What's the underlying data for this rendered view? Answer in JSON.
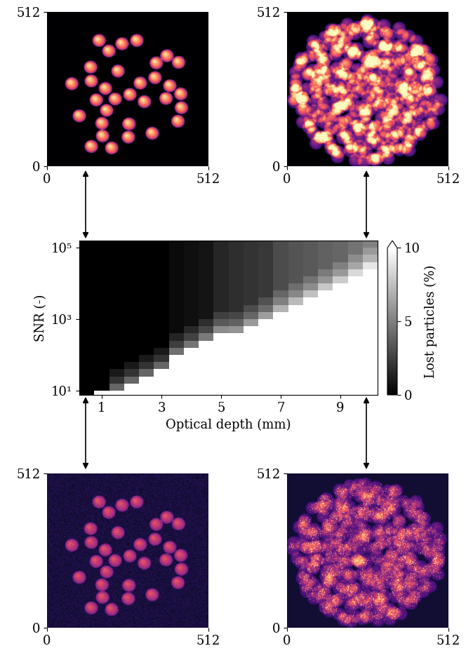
{
  "chart_data": [
    {
      "type": "image",
      "xlim": [
        0,
        512
      ],
      "ylim": [
        0,
        512
      ],
      "xticks": [
        0,
        512
      ],
      "yticks": [
        0,
        512
      ],
      "particle_radius": 22,
      "particles": [
        [
          165,
          418
        ],
        [
          196,
          383
        ],
        [
          238,
          407
        ],
        [
          285,
          418
        ],
        [
          381,
          367
        ],
        [
          347,
          343
        ],
        [
          418,
          345
        ],
        [
          138,
          329
        ],
        [
          225,
          316
        ],
        [
          78,
          274
        ],
        [
          140,
          283
        ],
        [
          185,
          258
        ],
        [
          296,
          276
        ],
        [
          343,
          294
        ],
        [
          390,
          267
        ],
        [
          263,
          238
        ],
        [
          156,
          220
        ],
        [
          216,
          223
        ],
        [
          309,
          214
        ],
        [
          378,
          225
        ],
        [
          425,
          240
        ],
        [
          189,
          185
        ],
        [
          427,
          194
        ],
        [
          102,
          167
        ],
        [
          174,
          142
        ],
        [
          260,
          140
        ],
        [
          416,
          149
        ],
        [
          176,
          100
        ],
        [
          334,
          109
        ],
        [
          258,
          96
        ],
        [
          140,
          65
        ],
        [
          205,
          60
        ]
      ]
    },
    {
      "type": "image",
      "xlim": [
        0,
        512
      ],
      "ylim": [
        0,
        512
      ],
      "xticks": [
        0,
        512
      ],
      "yticks": [
        0,
        512
      ],
      "particle_radius": 22,
      "cloud": {
        "center": [
          254,
          249
        ],
        "radius": 250
      }
    },
    {
      "type": "heatmap",
      "xlabel": "Optical depth (mm)",
      "ylabel": "SNR (-)",
      "log": "y",
      "color": "gray",
      "xlim": [
        0.25,
        10.25
      ],
      "ylim": [
        7.6,
        158489
      ],
      "xticks": [
        1,
        3,
        5,
        7,
        9
      ],
      "yticks": [
        {
          "value": 10,
          "label": "10¹"
        },
        {
          "value": 1000,
          "label": "10³"
        },
        {
          "value": 100000,
          "label": "10⁵"
        }
      ],
      "x_edges": [
        0.25,
        0.75,
        1.25,
        1.75,
        2.25,
        2.75,
        3.25,
        3.75,
        4.25,
        4.75,
        5.25,
        5.75,
        6.25,
        6.75,
        7.25,
        7.75,
        8.25,
        8.75,
        9.25,
        9.75,
        10.25
      ],
      "y_edges": [
        6.31,
        10,
        15.85,
        25.12,
        39.81,
        63.1,
        100,
        158.5,
        251.2,
        398.1,
        631,
        1000,
        1585,
        2512,
        3981,
        6310,
        10000,
        15849,
        25119,
        39811,
        63096,
        100000,
        158489
      ],
      "values": [
        [
          0,
          15,
          15,
          15,
          15,
          15,
          15,
          15,
          15,
          15,
          15,
          15,
          15,
          15,
          15,
          15,
          15,
          15,
          15,
          15
        ],
        [
          0,
          0,
          4,
          15,
          15,
          15,
          15,
          15,
          15,
          15,
          15,
          15,
          15,
          15,
          15,
          15,
          15,
          15,
          15,
          15
        ],
        [
          0,
          0,
          2,
          4,
          15,
          15,
          15,
          15,
          15,
          15,
          15,
          15,
          15,
          15,
          15,
          15,
          15,
          15,
          15,
          15
        ],
        [
          0,
          0,
          1,
          2,
          4,
          15,
          15,
          15,
          15,
          15,
          15,
          15,
          15,
          15,
          15,
          15,
          15,
          15,
          15,
          15
        ],
        [
          0,
          0,
          0,
          1,
          2,
          4,
          15,
          15,
          15,
          15,
          15,
          15,
          15,
          15,
          15,
          15,
          15,
          15,
          15,
          15
        ],
        [
          0,
          0,
          0,
          0,
          1,
          2,
          15,
          15,
          15,
          15,
          15,
          15,
          15,
          15,
          15,
          15,
          15,
          15,
          15,
          15
        ],
        [
          0,
          0,
          0,
          0,
          0,
          1,
          4.4,
          15,
          15,
          15,
          15,
          15,
          15,
          15,
          15,
          15,
          15,
          15,
          15,
          15
        ],
        [
          0,
          0,
          0,
          0,
          0,
          0,
          2.4,
          4.6,
          15,
          15,
          15,
          15,
          15,
          15,
          15,
          15,
          15,
          15,
          15,
          15
        ],
        [
          0,
          0,
          0,
          0,
          0,
          0,
          1.4,
          2.6,
          4.8,
          15,
          15,
          15,
          15,
          15,
          15,
          15,
          15,
          15,
          15,
          15
        ],
        [
          0,
          0,
          0,
          0,
          0,
          0,
          0.4,
          1.6,
          2.8,
          5.5,
          5.8,
          15,
          15,
          15,
          15,
          15,
          15,
          15,
          15,
          15
        ],
        [
          0,
          0,
          0,
          0,
          0,
          0,
          0.4,
          0.6,
          1.8,
          3.5,
          3.8,
          6.0,
          15,
          15,
          15,
          15,
          15,
          15,
          15,
          15
        ],
        [
          0,
          0,
          0,
          0,
          0,
          0,
          0.4,
          0.6,
          0.8,
          2.5,
          2.8,
          4.0,
          6.2,
          15,
          15,
          15,
          15,
          15,
          15,
          15
        ],
        [
          0,
          0,
          0,
          0,
          0,
          0,
          0.4,
          0.6,
          0.8,
          1.5,
          1.8,
          3.0,
          4.2,
          7.0,
          15,
          15,
          15,
          15,
          15,
          15
        ],
        [
          0,
          0,
          0,
          0,
          0,
          0,
          0.4,
          0.6,
          0.8,
          1.5,
          1.8,
          2.0,
          3.2,
          5.0,
          7.3,
          15,
          15,
          15,
          15,
          15
        ],
        [
          0,
          0,
          0,
          0,
          0,
          0,
          0.4,
          0.6,
          0.8,
          1.5,
          1.8,
          2.0,
          2.2,
          4.0,
          5.3,
          7.5,
          15,
          15,
          15,
          15
        ],
        [
          0,
          0,
          0,
          0,
          0,
          0,
          0.4,
          0.6,
          0.8,
          1.5,
          1.8,
          2.0,
          2.2,
          3.0,
          4.3,
          5.5,
          7.8,
          15,
          15,
          15
        ],
        [
          0,
          0,
          0,
          0,
          0,
          0,
          0.4,
          0.6,
          0.8,
          1.5,
          1.8,
          2.0,
          2.2,
          3.0,
          3.3,
          4.5,
          5.8,
          8.0,
          15,
          15
        ],
        [
          0,
          0,
          0,
          0,
          0,
          0,
          0.4,
          0.6,
          0.8,
          1.5,
          1.8,
          2.0,
          2.2,
          3.0,
          3.3,
          3.5,
          4.8,
          6.0,
          8.5,
          15
        ],
        [
          0,
          0,
          0,
          0,
          0,
          0,
          0.4,
          0.6,
          0.8,
          1.5,
          1.8,
          2.0,
          2.2,
          3.0,
          3.3,
          3.5,
          3.8,
          5.0,
          6.5,
          9.0
        ],
        [
          0,
          0,
          0,
          0,
          0,
          0,
          0.4,
          0.6,
          0.8,
          1.5,
          1.8,
          2.0,
          2.2,
          3.0,
          3.3,
          3.5,
          3.8,
          4.0,
          5.5,
          7.0
        ],
        [
          0,
          0,
          0,
          0,
          0,
          0,
          0.4,
          0.6,
          0.8,
          1.5,
          1.8,
          2.0,
          2.2,
          3.0,
          3.3,
          3.5,
          3.8,
          4.0,
          4.5,
          6.0
        ],
        [
          0,
          0,
          0,
          0,
          0,
          0,
          0.4,
          0.6,
          0.8,
          1.5,
          1.8,
          2.0,
          2.2,
          3.0,
          3.3,
          3.5,
          3.8,
          4.0,
          4.5,
          5.0
        ]
      ],
      "colorbar": {
        "label": "Lost particles (%)",
        "range": [
          0,
          10
        ],
        "ticks": [
          0,
          5,
          10
        ]
      }
    },
    {
      "type": "image",
      "xlim": [
        0,
        512
      ],
      "ylim": [
        0,
        512
      ],
      "xticks": [
        0,
        512
      ],
      "yticks": [
        0,
        512
      ],
      "particle_radius": 22,
      "particles": [
        [
          165,
          418
        ],
        [
          196,
          383
        ],
        [
          238,
          407
        ],
        [
          285,
          418
        ],
        [
          381,
          367
        ],
        [
          347,
          343
        ],
        [
          418,
          345
        ],
        [
          138,
          329
        ],
        [
          225,
          316
        ],
        [
          78,
          274
        ],
        [
          140,
          283
        ],
        [
          185,
          258
        ],
        [
          296,
          276
        ],
        [
          343,
          294
        ],
        [
          390,
          267
        ],
        [
          263,
          238
        ],
        [
          156,
          220
        ],
        [
          216,
          223
        ],
        [
          309,
          214
        ],
        [
          378,
          225
        ],
        [
          425,
          240
        ],
        [
          189,
          185
        ],
        [
          427,
          194
        ],
        [
          102,
          167
        ],
        [
          174,
          142
        ],
        [
          260,
          140
        ],
        [
          416,
          149
        ],
        [
          176,
          100
        ],
        [
          334,
          109
        ],
        [
          258,
          96
        ],
        [
          140,
          65
        ],
        [
          205,
          60
        ]
      ]
    },
    {
      "type": "image",
      "xlim": [
        0,
        512
      ],
      "ylim": [
        0,
        512
      ],
      "xticks": [
        0,
        512
      ],
      "yticks": [
        0,
        512
      ],
      "particle_radius": 22,
      "cloud": {
        "center": [
          254,
          249
        ],
        "radius": 250
      }
    }
  ]
}
